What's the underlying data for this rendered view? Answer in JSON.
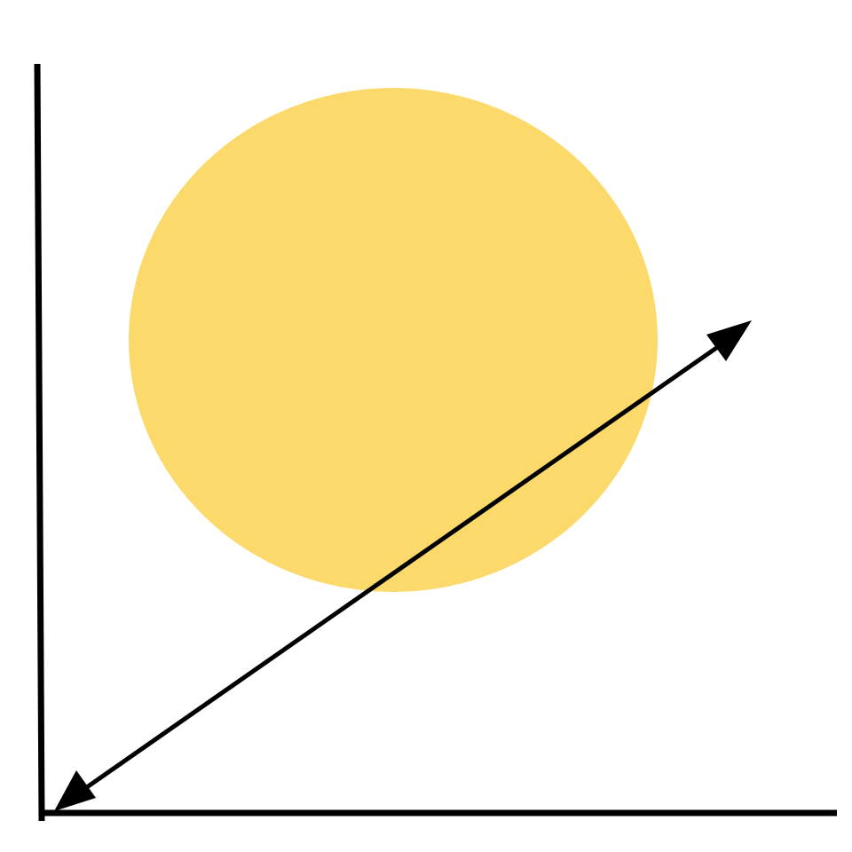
{
  "diagram": {
    "colors": {
      "background": "#ffffff",
      "circle_fill": "#fcd96b",
      "stroke": "#000000"
    },
    "elements": [
      {
        "kind": "vertical-axis",
        "name": "vertical-axis-line"
      },
      {
        "kind": "horizontal-axis",
        "name": "horizontal-axis-line"
      },
      {
        "kind": "filled-circle",
        "name": "yellow-circle"
      },
      {
        "kind": "double-headed-arrow",
        "name": "double-headed-diagonal-arrow"
      }
    ]
  }
}
